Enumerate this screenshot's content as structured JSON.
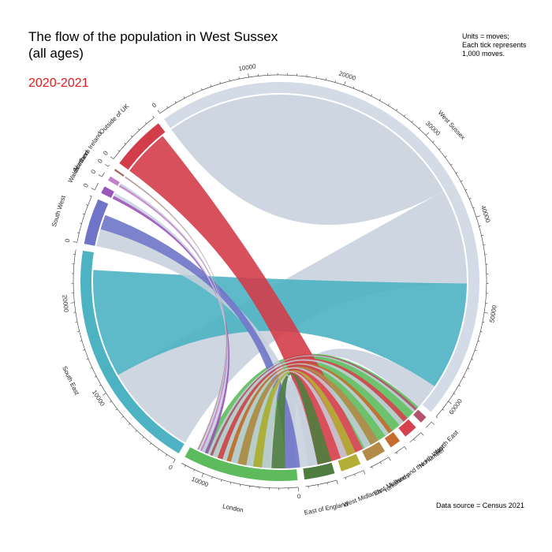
{
  "title_line1": "The flow of the population in West Sussex",
  "title_line2": "(all ages)",
  "year": "2020-2021",
  "units_note": [
    "Units = moves;",
    "Each tick represents",
    "1,000 moves."
  ],
  "source": "Data source = Census 2021",
  "colors": {
    "west_sussex": "#d3dbe6",
    "ribbon_default": "#c5cfdc"
  },
  "chart_data": {
    "type": "chord",
    "unit": "moves",
    "tick_every": 1000,
    "focus": "West Sussex",
    "sectors": [
      {
        "name": "West Sussex",
        "total": 62000,
        "color": "#d3dbe6",
        "ticks": [
          "0",
          "10000",
          "20000",
          "30000",
          "40000",
          "50000",
          "60000"
        ]
      },
      {
        "name": "North East",
        "total": 800,
        "color": "#b5536e",
        "ticks": []
      },
      {
        "name": "North West",
        "total": 1500,
        "color": "#d64250",
        "ticks": []
      },
      {
        "name": "Yorkshire and the Humber",
        "total": 1200,
        "color": "#c66c2e",
        "ticks": []
      },
      {
        "name": "East Midlands",
        "total": 2200,
        "color": "#b48a4a",
        "ticks": []
      },
      {
        "name": "West Midlands",
        "total": 2200,
        "color": "#b3ae35",
        "ticks": []
      },
      {
        "name": "East of England",
        "total": 3300,
        "color": "#4f7d3f",
        "ticks": []
      },
      {
        "name": "London",
        "total": 12500,
        "color": "#5dbb5d",
        "ticks": [
          "0",
          "10000"
        ]
      },
      {
        "name": "South East",
        "total": 25500,
        "color": "#4db3c2",
        "ticks": [
          "0",
          "10000",
          "20000"
        ]
      },
      {
        "name": "South West",
        "total": 5000,
        "color": "#6f74c8",
        "ticks": [
          "0"
        ]
      },
      {
        "name": "Wales",
        "total": 800,
        "color": "#9b54b8",
        "ticks": [
          "0"
        ]
      },
      {
        "name": "Scotland",
        "total": 500,
        "color": "#c281c8",
        "ticks": [
          "0"
        ]
      },
      {
        "name": "Northern Ireland",
        "total": 200,
        "color": "#a06a5c",
        "ticks": [
          "0"
        ]
      },
      {
        "name": "Outside of UK",
        "total": 6000,
        "color": "#d33d4a",
        "ticks": [
          "0"
        ]
      }
    ],
    "flows": [
      {
        "from": "West Sussex",
        "to": "West Sussex",
        "value": 18000
      },
      {
        "from": "West Sussex",
        "to": "South East",
        "value": 11000
      },
      {
        "from": "South East",
        "to": "West Sussex",
        "value": 12500
      },
      {
        "from": "West Sussex",
        "to": "London",
        "value": 3000
      },
      {
        "from": "London",
        "to": "West Sussex",
        "value": 8000
      },
      {
        "from": "Outside of UK",
        "to": "West Sussex",
        "value": 5500
      },
      {
        "from": "West Sussex",
        "to": "South West",
        "value": 2000
      },
      {
        "from": "South West",
        "to": "West Sussex",
        "value": 1700
      },
      {
        "from": "East of England",
        "to": "West Sussex",
        "value": 1600
      },
      {
        "from": "West Sussex",
        "to": "East of England",
        "value": 1100
      },
      {
        "from": "West Midlands",
        "to": "West Sussex",
        "value": 1000
      },
      {
        "from": "West Sussex",
        "to": "West Midlands",
        "value": 800
      },
      {
        "from": "East Midlands",
        "to": "West Sussex",
        "value": 1000
      },
      {
        "from": "West Sussex",
        "to": "East Midlands",
        "value": 800
      },
      {
        "from": "Yorkshire and the Humber",
        "to": "West Sussex",
        "value": 500
      },
      {
        "from": "West Sussex",
        "to": "Yorkshire and the Humber",
        "value": 500
      },
      {
        "from": "North West",
        "to": "West Sussex",
        "value": 600
      },
      {
        "from": "West Sussex",
        "to": "North West",
        "value": 600
      },
      {
        "from": "North East",
        "to": "West Sussex",
        "value": 300
      },
      {
        "from": "West Sussex",
        "to": "North East",
        "value": 300
      },
      {
        "from": "Wales",
        "to": "West Sussex",
        "value": 350
      },
      {
        "from": "West Sussex",
        "to": "Wales",
        "value": 350
      },
      {
        "from": "Scotland",
        "to": "West Sussex",
        "value": 250
      },
      {
        "from": "West Sussex",
        "to": "Scotland",
        "value": 200
      },
      {
        "from": "Northern Ireland",
        "to": "West Sussex",
        "value": 100
      },
      {
        "from": "West Sussex",
        "to": "Northern Ireland",
        "value": 100
      }
    ]
  }
}
